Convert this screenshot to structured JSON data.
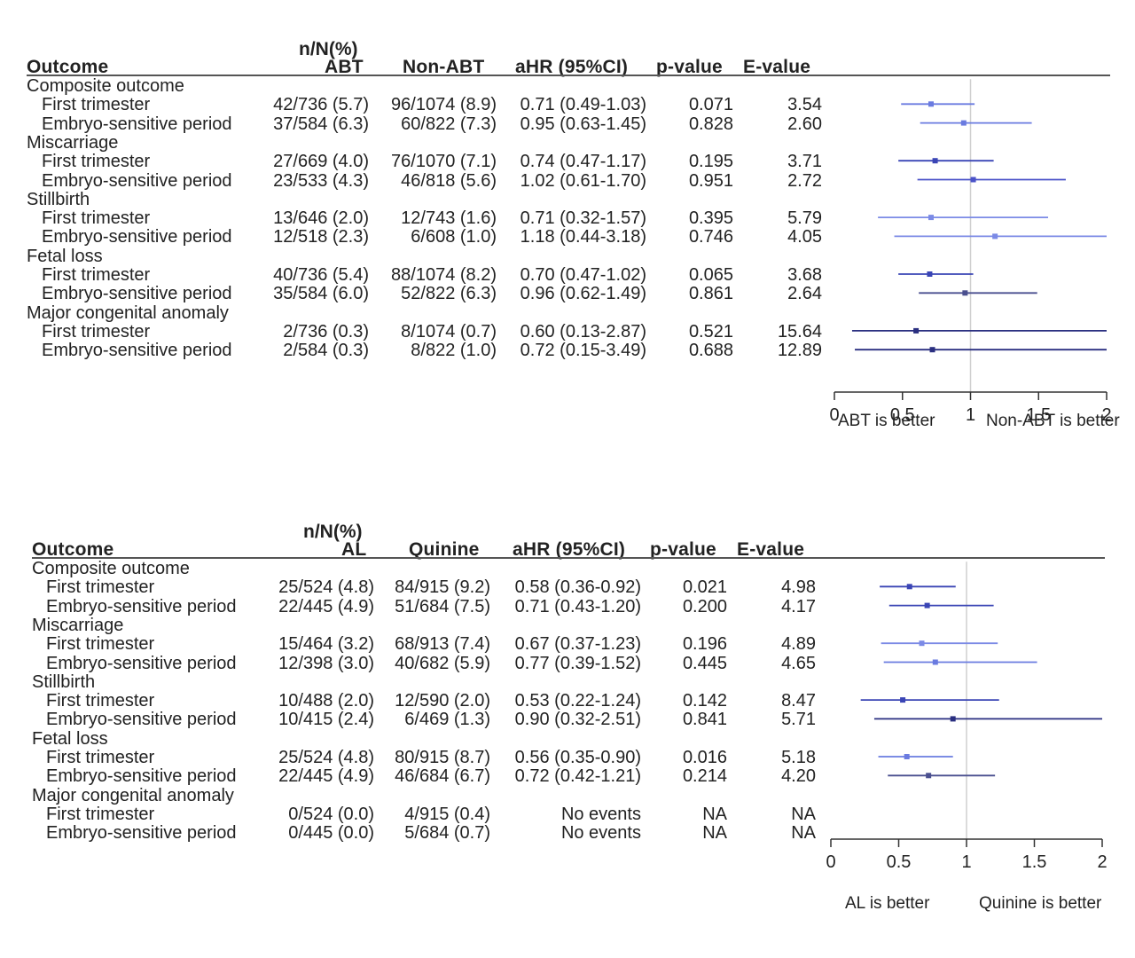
{
  "chart_data": [
    {
      "type": "forest",
      "header": {
        "nn": "n/N(%)",
        "outcome": "Outcome",
        "group1": "ABT",
        "group2": "Non-ABT",
        "ahr": "aHR (95%CI)",
        "p": "p-value",
        "e": "E-value"
      },
      "groups": [
        {
          "label": "Composite outcome",
          "rows": [
            {
              "label": "First trimester",
              "g1": "42/736 (5.7)",
              "g2": "96/1074 (8.9)",
              "ahr_text": "0.71 (0.49-1.03)",
              "p": "0.071",
              "e": "3.54",
              "hr": 0.71,
              "lo": 0.49,
              "hi": 1.03,
              "color": "#6a7be0"
            },
            {
              "label": "Embryo-sensitive period",
              "g1": "37/584 (6.3)",
              "g2": "60/822 (7.3)",
              "ahr_text": "0.95 (0.63-1.45)",
              "p": "0.828",
              "e": "2.60",
              "hr": 0.95,
              "lo": 0.63,
              "hi": 1.45,
              "color": "#6a7be0"
            }
          ]
        },
        {
          "label": "Miscarriage",
          "rows": [
            {
              "label": "First trimester",
              "g1": "27/669 (4.0)",
              "g2": "76/1070 (7.1)",
              "ahr_text": "0.74 (0.47-1.17)",
              "p": "0.195",
              "e": "3.71",
              "hr": 0.74,
              "lo": 0.47,
              "hi": 1.17,
              "color": "#3a45b5"
            },
            {
              "label": "Embryo-sensitive period",
              "g1": "23/533 (4.3)",
              "g2": "46/818 (5.6)",
              "ahr_text": "1.02 (0.61-1.70)",
              "p": "0.951",
              "e": "2.72",
              "hr": 1.02,
              "lo": 0.61,
              "hi": 1.7,
              "color": "#4a52c8"
            }
          ]
        },
        {
          "label": "Stillbirth",
          "rows": [
            {
              "label": "First trimester",
              "g1": "13/646 (2.0)",
              "g2": "12/743 (1.6)",
              "ahr_text": "0.71 (0.32-1.57)",
              "p": "0.395",
              "e": "5.79",
              "hr": 0.71,
              "lo": 0.32,
              "hi": 1.57,
              "color": "#7b8ae6"
            },
            {
              "label": "Embryo-sensitive period",
              "g1": "12/518 (2.3)",
              "g2": "6/608 (1.0)",
              "ahr_text": "1.18 (0.44-3.18)",
              "p": "0.746",
              "e": "4.05",
              "hr": 1.18,
              "lo": 0.44,
              "hi": 3.18,
              "color": "#7b8ae6"
            }
          ]
        },
        {
          "label": "Fetal loss",
          "rows": [
            {
              "label": "First trimester",
              "g1": "40/736 (5.4)",
              "g2": "88/1074 (8.2)",
              "ahr_text": "0.70 (0.47-1.02)",
              "p": "0.065",
              "e": "3.68",
              "hr": 0.7,
              "lo": 0.47,
              "hi": 1.02,
              "color": "#3a45b5"
            },
            {
              "label": "Embryo-sensitive period",
              "g1": "35/584 (6.0)",
              "g2": "52/822 (6.3)",
              "ahr_text": "0.96 (0.62-1.49)",
              "p": "0.861",
              "e": "2.64",
              "hr": 0.96,
              "lo": 0.62,
              "hi": 1.49,
              "color": "#4a4f8f"
            }
          ]
        },
        {
          "label": "Major congenital anomaly",
          "rows": [
            {
              "label": "First trimester",
              "g1": "2/736 (0.3)",
              "g2": "8/1074 (0.7)",
              "ahr_text": "0.60 (0.13-2.87)",
              "p": "0.521",
              "e": "15.64",
              "hr": 0.6,
              "lo": 0.13,
              "hi": 2.87,
              "color": "#2a2f80"
            },
            {
              "label": "Embryo-sensitive period",
              "g1": "2/584 (0.3)",
              "g2": "8/822 (1.0)",
              "ahr_text": "0.72 (0.15-3.49)",
              "p": "0.688",
              "e": "12.89",
              "hr": 0.72,
              "lo": 0.15,
              "hi": 3.49,
              "color": "#2a2f80"
            }
          ]
        }
      ],
      "xaxis": {
        "min": 0,
        "max": 2,
        "ref": 1,
        "ticks": [
          0,
          0.5,
          1,
          1.5,
          2
        ],
        "tick_labels": [
          "0",
          "0.5",
          "1",
          "1.5",
          "2"
        ]
      },
      "left_label": "ABT is better",
      "right_label": "Non-ABT is better"
    },
    {
      "type": "forest",
      "header": {
        "nn": "n/N(%)",
        "outcome": "Outcome",
        "group1": "AL",
        "group2": "Quinine",
        "ahr": "aHR (95%CI)",
        "p": "p-value",
        "e": "E-value"
      },
      "groups": [
        {
          "label": "Composite outcome",
          "rows": [
            {
              "label": "First trimester",
              "g1": "25/524 (4.8)",
              "g2": "84/915 (9.2)",
              "ahr_text": "0.58 (0.36-0.92)",
              "p": "0.021",
              "e": "4.98",
              "hr": 0.58,
              "lo": 0.36,
              "hi": 0.92,
              "color": "#3a45b5"
            },
            {
              "label": "Embryo-sensitive period",
              "g1": "22/445 (4.9)",
              "g2": "51/684 (7.5)",
              "ahr_text": "0.71 (0.43-1.20)",
              "p": "0.200",
              "e": "4.17",
              "hr": 0.71,
              "lo": 0.43,
              "hi": 1.2,
              "color": "#3a45b5"
            }
          ]
        },
        {
          "label": "Miscarriage",
          "rows": [
            {
              "label": "First trimester",
              "g1": "15/464 (3.2)",
              "g2": "68/913 (7.4)",
              "ahr_text": "0.67 (0.37-1.23)",
              "p": "0.196",
              "e": "4.89",
              "hr": 0.67,
              "lo": 0.37,
              "hi": 1.23,
              "color": "#7b8ae6"
            },
            {
              "label": "Embryo-sensitive period",
              "g1": "12/398 (3.0)",
              "g2": "40/682 (5.9)",
              "ahr_text": "0.77 (0.39-1.52)",
              "p": "0.445",
              "e": "4.65",
              "hr": 0.77,
              "lo": 0.39,
              "hi": 1.52,
              "color": "#6a7be0"
            }
          ]
        },
        {
          "label": "Stillbirth",
          "rows": [
            {
              "label": "First trimester",
              "g1": "10/488 (2.0)",
              "g2": "12/590 (2.0)",
              "ahr_text": "0.53 (0.22-1.24)",
              "p": "0.142",
              "e": "8.47",
              "hr": 0.53,
              "lo": 0.22,
              "hi": 1.24,
              "color": "#3a45b5"
            },
            {
              "label": "Embryo-sensitive period",
              "g1": "10/415 (2.4)",
              "g2": "6/469 (1.3)",
              "ahr_text": "0.90 (0.32-2.51)",
              "p": "0.841",
              "e": "5.71",
              "hr": 0.9,
              "lo": 0.32,
              "hi": 2.51,
              "color": "#2a2f80"
            }
          ]
        },
        {
          "label": "Fetal loss",
          "rows": [
            {
              "label": "First trimester",
              "g1": "25/524 (4.8)",
              "g2": "80/915 (8.7)",
              "ahr_text": "0.56 (0.35-0.90)",
              "p": "0.016",
              "e": "5.18",
              "hr": 0.56,
              "lo": 0.35,
              "hi": 0.9,
              "color": "#6a7be0"
            },
            {
              "label": "Embryo-sensitive period",
              "g1": "22/445 (4.9)",
              "g2": "46/684 (6.7)",
              "ahr_text": "0.72 (0.42-1.21)",
              "p": "0.214",
              "e": "4.20",
              "hr": 0.72,
              "lo": 0.42,
              "hi": 1.21,
              "color": "#4a4f8f"
            }
          ]
        },
        {
          "label": "Major congenital anomaly",
          "rows": [
            {
              "label": "First trimester",
              "g1": "0/524 (0.0)",
              "g2": "4/915 (0.4)",
              "ahr_text": "No events",
              "p": "NA",
              "e": "NA",
              "hr": null,
              "lo": null,
              "hi": null,
              "color": "#2a2f80"
            },
            {
              "label": "Embryo-sensitive period",
              "g1": "0/445 (0.0)",
              "g2": "5/684 (0.7)",
              "ahr_text": "No events",
              "p": "NA",
              "e": "NA",
              "hr": null,
              "lo": null,
              "hi": null,
              "color": "#2a2f80"
            }
          ]
        }
      ],
      "xaxis": {
        "min": 0,
        "max": 2,
        "ref": 1,
        "ticks": [
          0,
          0.5,
          1,
          1.5,
          2
        ],
        "tick_labels": [
          "0",
          "0.5",
          "1",
          "1.5",
          "2"
        ]
      },
      "left_label": "AL is better",
      "right_label": "Quinine is better"
    }
  ]
}
